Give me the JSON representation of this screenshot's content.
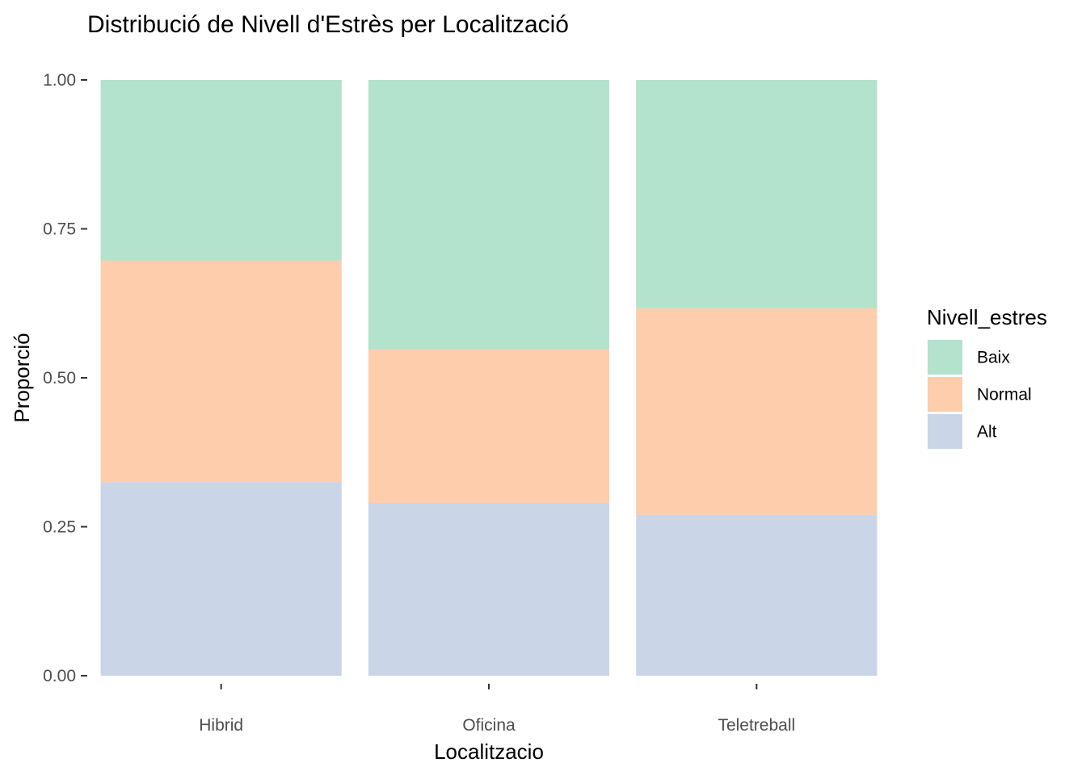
{
  "chart_data": {
    "type": "bar",
    "stacked": true,
    "title": "Distribució de Nivell d'Estrès per Localització",
    "xlabel": "Localitzacio",
    "ylabel": "Proporció",
    "ylim": [
      0,
      1
    ],
    "y_ticks": [
      "0.00",
      "0.25",
      "0.50",
      "0.75",
      "1.00"
    ],
    "grid": false,
    "legend": {
      "title": "Nivell_estres",
      "placement": "right"
    },
    "categories": [
      "Hibrid",
      "Oficina",
      "Teletreball"
    ],
    "series": [
      {
        "name": "Alt",
        "color": "#cbd5e8",
        "values": [
          0.325,
          0.29,
          0.27
        ]
      },
      {
        "name": "Normal",
        "color": "#fdcdac",
        "values": [
          0.372,
          0.258,
          0.347
        ]
      },
      {
        "name": "Baix",
        "color": "#b3e2cd",
        "values": [
          0.303,
          0.452,
          0.383
        ]
      }
    ],
    "legend_order": [
      "Baix",
      "Normal",
      "Alt"
    ]
  }
}
